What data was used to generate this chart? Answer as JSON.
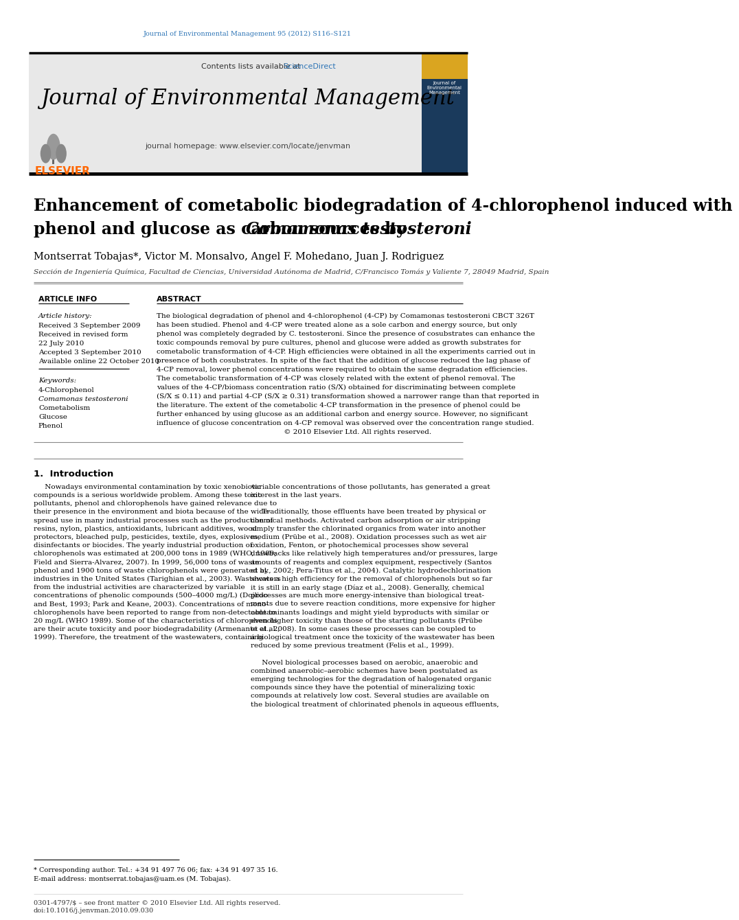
{
  "journal_ref": "Journal of Environmental Management 95 (2012) S116–S121",
  "journal_name": "Journal of Environmental Management",
  "journal_homepage": "journal homepage: www.elsevier.com/locate/jenvman",
  "sciencedirect_color": "#2E75B6",
  "title_line1": "Enhancement of cometabolic biodegradation of 4-chlorophenol induced with",
  "title_line2": "phenol and glucose as carbon sources by ",
  "title_italic": "Comamonas testosteroni",
  "authors": "Montserrat Tobajas*, Victor M. Monsalvo, Angel F. Mohedano, Juan J. Rodriguez",
  "affiliation": "Sección de Ingeniería Química, Facultad de Ciencias, Universidad Autónoma de Madrid, C/Francisco Tomás y Valiente 7, 28049 Madrid, Spain",
  "article_info_header": "ARTICLE INFO",
  "abstract_header": "ABSTRACT",
  "article_history_label": "Article history:",
  "received1": "Received 3 September 2009",
  "received_revised": "Received in revised form",
  "revised_date": "22 July 2010",
  "accepted": "Accepted 3 September 2010",
  "available": "Available online 22 October 2010",
  "keywords_label": "Keywords:",
  "keyword1": "4-Chlorophenol",
  "keyword2_italic": "Comamonas testosteroni",
  "keyword3": "Cometabolism",
  "keyword4": "Glucose",
  "keyword5": "Phenol",
  "footnote1": "* Corresponding author. Tel.: +34 91 497 76 06; fax: +34 91 497 35 16.",
  "footnote2": "E-mail address: montserrat.tobajas@uam.es (M. Tobajas).",
  "footer1": "0301-4797/$ – see front matter © 2010 Elsevier Ltd. All rights reserved.",
  "footer2": "doi:10.1016/j.jenvman.2010.09.030",
  "elsevier_color": "#FF6600",
  "link_color": "#2E75B6",
  "bg_header": "#E8E8E8",
  "bg_white": "#FFFFFF"
}
